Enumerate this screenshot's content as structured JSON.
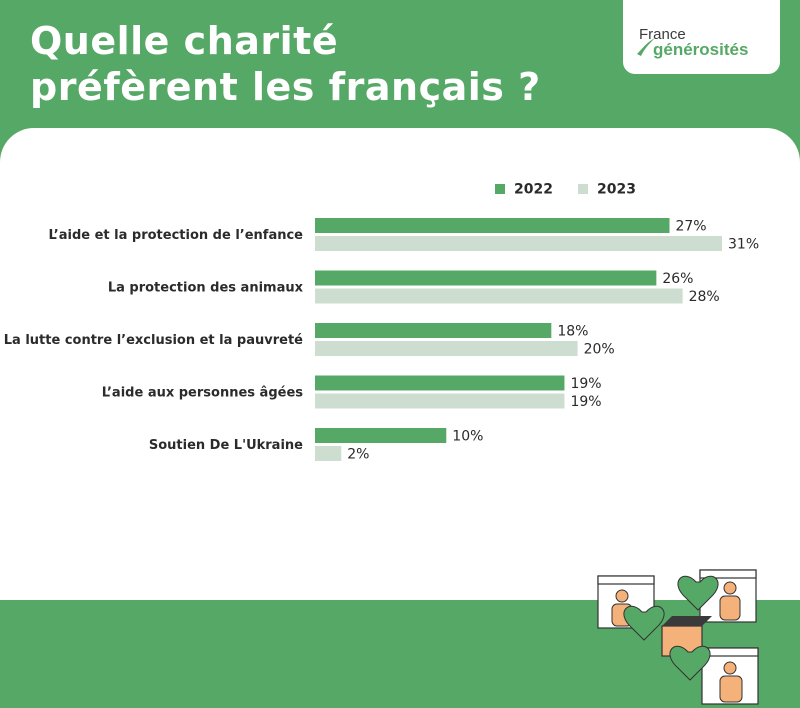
{
  "header": {
    "title_line1": "Quelle charité",
    "title_line2": "préfèrent les français ?"
  },
  "logo": {
    "line1": "France",
    "line2": "générosités"
  },
  "colors": {
    "background": "#55a866",
    "series_2022": "#55a866",
    "series_2023": "#cdddd0",
    "text": "#2b2b2b"
  },
  "chart_data": {
    "type": "bar",
    "orientation": "horizontal",
    "categories": [
      "L’aide et la protection de l’enfance",
      "La protection des animaux",
      "La lutte contre l’exclusion et la pauvreté",
      "L’aide aux personnes âgées",
      "Soutien De L'Ukraine"
    ],
    "series": [
      {
        "name": "2022",
        "values": [
          27,
          26,
          18,
          19,
          10
        ],
        "labels": [
          "27%",
          "26%",
          "18%",
          "19%",
          "10%"
        ]
      },
      {
        "name": "2023",
        "values": [
          31,
          28,
          20,
          19,
          2
        ],
        "labels": [
          "31%",
          "28%",
          "20%",
          "19%",
          "2%"
        ]
      }
    ],
    "xlim": [
      0,
      31
    ],
    "legend": "top-right",
    "grid": false
  }
}
